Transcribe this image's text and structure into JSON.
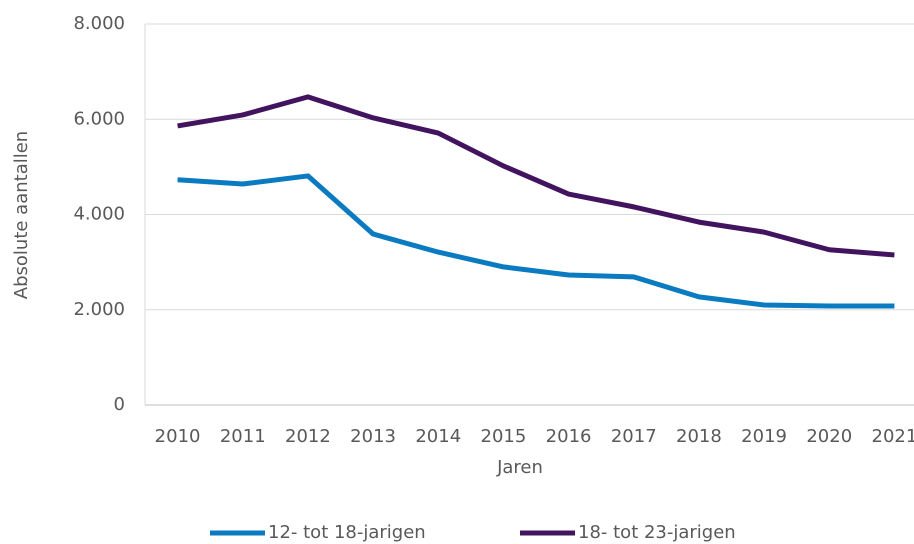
{
  "chart_data": {
    "type": "line",
    "x_label": "Jaren",
    "y_label": "Absolute aantallen",
    "categories": [
      "2010",
      "2011",
      "2012",
      "2013",
      "2014",
      "2015",
      "2016",
      "2017",
      "2018",
      "2019",
      "2020",
      "2021"
    ],
    "series": [
      {
        "name": "12- tot 18-jarigen",
        "color": "#0b7bc1",
        "values": [
          4730,
          4640,
          4810,
          3590,
          3210,
          2900,
          2730,
          2690,
          2270,
          2100,
          2080,
          2080
        ]
      },
      {
        "name": "18- tot 23-jarigen",
        "color": "#42145f",
        "values": [
          5860,
          6090,
          6470,
          6030,
          5710,
          5020,
          4430,
          4160,
          3840,
          3630,
          3260,
          3150
        ]
      }
    ],
    "ylim": [
      0,
      8000
    ],
    "yticks": [
      0,
      {
        "value": 2000,
        "label": "2.000"
      },
      {
        "value": 4000,
        "label": "4.000"
      },
      {
        "value": 6000,
        "label": "6.000"
      },
      {
        "value": 8000,
        "label": "8.000"
      }
    ],
    "grid": true,
    "legend": "bottom"
  }
}
